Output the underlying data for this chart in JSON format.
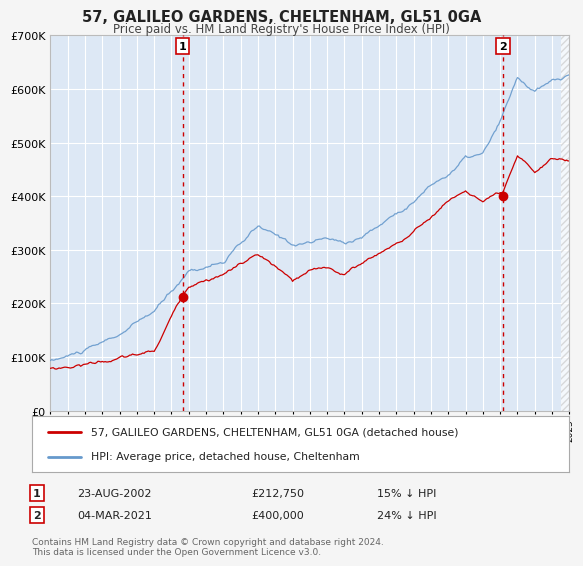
{
  "title": "57, GALILEO GARDENS, CHELTENHAM, GL51 0GA",
  "subtitle": "Price paid vs. HM Land Registry's House Price Index (HPI)",
  "legend_label_red": "57, GALILEO GARDENS, CHELTENHAM, GL51 0GA (detached house)",
  "legend_label_blue": "HPI: Average price, detached house, Cheltenham",
  "annotation1_label": "1",
  "annotation1_date": "23-AUG-2002",
  "annotation1_price": "£212,750",
  "annotation1_hpi": "15% ↓ HPI",
  "annotation1_year": 2002.64,
  "annotation1_value": 212750,
  "annotation2_label": "2",
  "annotation2_date": "04-MAR-2021",
  "annotation2_price": "£400,000",
  "annotation2_hpi": "24% ↓ HPI",
  "annotation2_year": 2021.17,
  "annotation2_value": 400000,
  "xmin": 1995,
  "xmax": 2025,
  "ymin": 0,
  "ymax": 700000,
  "yticks": [
    0,
    100000,
    200000,
    300000,
    400000,
    500000,
    600000,
    700000
  ],
  "ytick_labels": [
    "£0",
    "£100K",
    "£200K",
    "£300K",
    "£400K",
    "£500K",
    "£600K",
    "£700K"
  ],
  "footer_text": "Contains HM Land Registry data © Crown copyright and database right 2024.\nThis data is licensed under the Open Government Licence v3.0.",
  "bg_color": "#f5f5f5",
  "plot_bg_color": "#dde8f5",
  "red_color": "#cc0000",
  "blue_color": "#6699cc",
  "vline_color": "#cc0000",
  "grid_color": "#ffffff",
  "hatch_color": "#cccccc"
}
